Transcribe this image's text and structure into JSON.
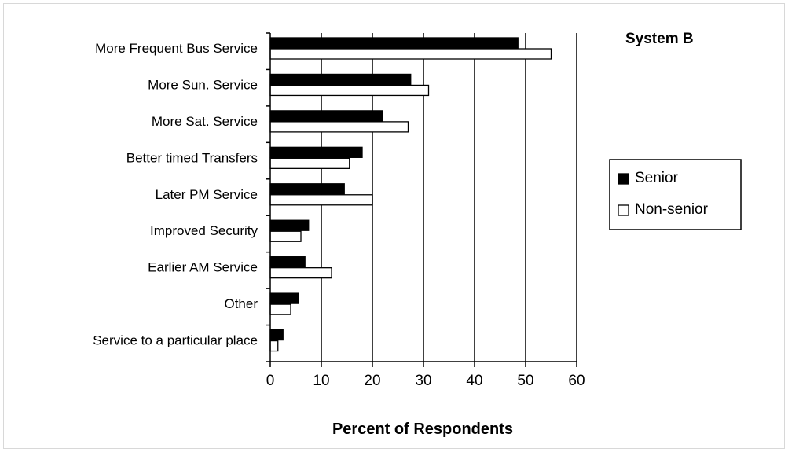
{
  "chart_data": {
    "type": "bar",
    "orientation": "horizontal",
    "title": "System B",
    "xlabel": "Percent of Respondents",
    "ylabel": "",
    "xlim": [
      0,
      60
    ],
    "xticks": [
      0,
      10,
      20,
      30,
      40,
      50,
      60
    ],
    "grid": "vertical",
    "legend_position": "right",
    "categories": [
      "More Frequent Bus Service",
      "More Sun. Service",
      "More Sat. Service",
      "Better timed Transfers",
      "Later PM Service",
      "Improved Security",
      "Earlier AM Service",
      "Other",
      "Service to a particular place"
    ],
    "series": [
      {
        "name": "Senior",
        "color": "#000000",
        "values": [
          48.5,
          27.5,
          22,
          18,
          14.5,
          7.5,
          6.8,
          5.5,
          2.5
        ]
      },
      {
        "name": "Non-senior",
        "color": "#ffffff",
        "values": [
          55,
          31,
          27,
          15.5,
          20,
          6,
          12,
          4,
          1.5
        ]
      }
    ]
  }
}
